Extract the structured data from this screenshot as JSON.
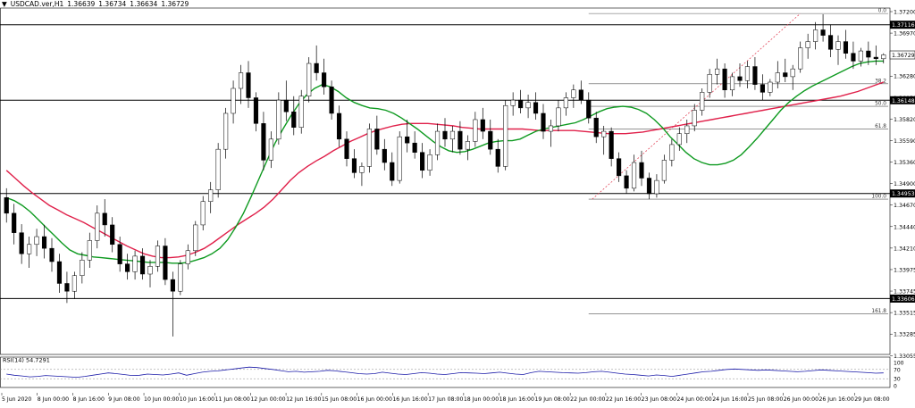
{
  "header": {
    "symbol": "USDCAD.ver,H1",
    "open": "1.36639",
    "high": "1.36734",
    "low": "1.36634",
    "close": "1.36729"
  },
  "rsi_header": "RSI(14) 54.7291",
  "chart_data": {
    "type": "candlestick",
    "symbol": "USDCAD.ver",
    "timeframe": "H1",
    "ylim": [
      1.3289,
      1.3733
    ],
    "price_ticks": [
      "1.37200",
      "1.36970",
      "1.36510",
      "1.36280",
      "1.36050",
      "1.35820",
      "1.35590",
      "1.35360",
      "1.34900",
      "1.34670",
      "1.34440",
      "1.34210",
      "1.33975",
      "1.33745",
      "1.33515",
      "1.33285",
      "1.33055"
    ],
    "x_labels": [
      "5 Jun 2020",
      "8 Jun 00:00",
      "8 Jun 16:00",
      "9 Jun 08:00",
      "10 Jun 00:00",
      "10 Jun 16:00",
      "11 Jun 08:00",
      "12 Jun 00:00",
      "12 Jun 16:00",
      "15 Jun 08:00",
      "16 Jun 00:00",
      "16 Jun 16:00",
      "17 Jun 08:00",
      "18 Jun 00:00",
      "18 Jun 16:00",
      "19 Jun 08:00",
      "22 Jun 00:00",
      "22 Jun 16:00",
      "23 Jun 08:00",
      "24 Jun 00:00",
      "24 Jun 16:00",
      "25 Jun 08:00",
      "26 Jun 00:00",
      "26 Jun 16:00",
      "29 Jun 08:00"
    ],
    "price_levels": [
      {
        "value": 1.37116,
        "label": "1.37116"
      },
      {
        "value": 1.36148,
        "label": "1.36148"
      },
      {
        "value": 1.34953,
        "label": "1.34953"
      },
      {
        "value": 1.33606,
        "label": "1.33606"
      }
    ],
    "current_price": {
      "value": 1.36729,
      "label": "1.36729"
    },
    "fibonacci": {
      "from": 1.3488,
      "to": 1.3726,
      "levels": [
        {
          "ratio": "0.0",
          "value": 1.3726
        },
        {
          "ratio": "38.2",
          "value": 1.3636
        },
        {
          "ratio": "50.0",
          "value": 1.3607
        },
        {
          "ratio": "61.8",
          "value": 1.3578
        },
        {
          "ratio": "100.0",
          "value": 1.3488
        },
        {
          "ratio": "161.8",
          "value": 1.3341
        }
      ]
    },
    "ohlc": [
      [
        1.349,
        1.3502,
        1.3458,
        1.347
      ],
      [
        1.347,
        1.3482,
        1.343,
        1.3445
      ],
      [
        1.3445,
        1.3456,
        1.3405,
        1.3418
      ],
      [
        1.3418,
        1.344,
        1.34,
        1.343
      ],
      [
        1.343,
        1.345,
        1.3415,
        1.344
      ],
      [
        1.344,
        1.3455,
        1.3412,
        1.3425
      ],
      [
        1.3425,
        1.3438,
        1.3395,
        1.3408
      ],
      [
        1.3408,
        1.3418,
        1.3368,
        1.338
      ],
      [
        1.338,
        1.3395,
        1.3355,
        1.337
      ],
      [
        1.337,
        1.3395,
        1.336,
        1.339
      ],
      [
        1.339,
        1.342,
        1.338,
        1.341
      ],
      [
        1.341,
        1.3445,
        1.34,
        1.3435
      ],
      [
        1.3435,
        1.348,
        1.3425,
        1.347
      ],
      [
        1.347,
        1.3488,
        1.344,
        1.3455
      ],
      [
        1.3455,
        1.3465,
        1.342,
        1.343
      ],
      [
        1.343,
        1.344,
        1.3395,
        1.3405
      ],
      [
        1.3405,
        1.3418,
        1.3385,
        1.3395
      ],
      [
        1.3395,
        1.3422,
        1.3385,
        1.3415
      ],
      [
        1.3415,
        1.3425,
        1.3385,
        1.3392
      ],
      [
        1.3392,
        1.341,
        1.3375,
        1.3402
      ],
      [
        1.3402,
        1.3435,
        1.3395,
        1.3428
      ],
      [
        1.3428,
        1.3438,
        1.3378,
        1.3385
      ],
      [
        1.3385,
        1.3395,
        1.3312,
        1.337
      ],
      [
        1.337,
        1.341,
        1.3365,
        1.3405
      ],
      [
        1.3405,
        1.343,
        1.3398,
        1.3422
      ],
      [
        1.3422,
        1.346,
        1.3415,
        1.3455
      ],
      [
        1.3455,
        1.3492,
        1.3448,
        1.3485
      ],
      [
        1.3485,
        1.351,
        1.347,
        1.35
      ],
      [
        1.35,
        1.356,
        1.349,
        1.3552
      ],
      [
        1.3552,
        1.3605,
        1.354,
        1.3598
      ],
      [
        1.3598,
        1.364,
        1.3585,
        1.363
      ],
      [
        1.363,
        1.366,
        1.361,
        1.365
      ],
      [
        1.365,
        1.3665,
        1.3605,
        1.3618
      ],
      [
        1.3618,
        1.3625,
        1.3575,
        1.3585
      ],
      [
        1.3585,
        1.36,
        1.3525,
        1.3538
      ],
      [
        1.3538,
        1.3575,
        1.3528,
        1.3565
      ],
      [
        1.3565,
        1.3625,
        1.3558,
        1.3615
      ],
      [
        1.3615,
        1.364,
        1.3588,
        1.36
      ],
      [
        1.36,
        1.362,
        1.357,
        1.358
      ],
      [
        1.358,
        1.3628,
        1.3572,
        1.362
      ],
      [
        1.362,
        1.367,
        1.3612,
        1.3662
      ],
      [
        1.3662,
        1.3685,
        1.364,
        1.365
      ],
      [
        1.365,
        1.3668,
        1.3622,
        1.3632
      ],
      [
        1.3632,
        1.364,
        1.359,
        1.3598
      ],
      [
        1.3598,
        1.3608,
        1.3555,
        1.3565
      ],
      [
        1.3565,
        1.3575,
        1.353,
        1.354
      ],
      [
        1.354,
        1.3552,
        1.3515,
        1.3522
      ],
      [
        1.3522,
        1.3535,
        1.3505,
        1.353
      ],
      [
        1.353,
        1.3585,
        1.3522,
        1.3578
      ],
      [
        1.3578,
        1.3595,
        1.3545,
        1.3552
      ],
      [
        1.3552,
        1.3565,
        1.3525,
        1.3535
      ],
      [
        1.3535,
        1.3548,
        1.3505,
        1.3512
      ],
      [
        1.3512,
        1.3575,
        1.3508,
        1.3568
      ],
      [
        1.3568,
        1.359,
        1.3548,
        1.356
      ],
      [
        1.356,
        1.3575,
        1.354,
        1.3548
      ],
      [
        1.3548,
        1.356,
        1.3515,
        1.3525
      ],
      [
        1.3525,
        1.3552,
        1.3518,
        1.3545
      ],
      [
        1.3545,
        1.3585,
        1.3538,
        1.3575
      ],
      [
        1.3575,
        1.3592,
        1.3555,
        1.3565
      ],
      [
        1.3565,
        1.3582,
        1.3548,
        1.3575
      ],
      [
        1.3575,
        1.3588,
        1.3545,
        1.3552
      ],
      [
        1.3552,
        1.357,
        1.3538,
        1.3562
      ],
      [
        1.3562,
        1.36,
        1.3555,
        1.359
      ],
      [
        1.359,
        1.3605,
        1.3565,
        1.3575
      ],
      [
        1.3575,
        1.359,
        1.3545,
        1.3552
      ],
      [
        1.3552,
        1.3565,
        1.3522,
        1.353
      ],
      [
        1.353,
        1.3615,
        1.3525,
        1.3608
      ],
      [
        1.3608,
        1.3625,
        1.3595,
        1.3615
      ],
      [
        1.3615,
        1.3628,
        1.3598,
        1.3605
      ],
      [
        1.3605,
        1.3622,
        1.3592,
        1.3612
      ],
      [
        1.3612,
        1.3625,
        1.359,
        1.3598
      ],
      [
        1.3598,
        1.361,
        1.3565,
        1.3575
      ],
      [
        1.3575,
        1.359,
        1.3555,
        1.3582
      ],
      [
        1.3582,
        1.3615,
        1.3575,
        1.3605
      ],
      [
        1.3605,
        1.3625,
        1.3595,
        1.3618
      ],
      [
        1.3618,
        1.3635,
        1.3605,
        1.3628
      ],
      [
        1.3628,
        1.364,
        1.361,
        1.3615
      ],
      [
        1.3615,
        1.3625,
        1.3585,
        1.3592
      ],
      [
        1.3592,
        1.36,
        1.356,
        1.3568
      ],
      [
        1.3568,
        1.3582,
        1.3545,
        1.3575
      ],
      [
        1.3575,
        1.358,
        1.353,
        1.354
      ],
      [
        1.354,
        1.3548,
        1.351,
        1.3518
      ],
      [
        1.3518,
        1.3525,
        1.3495,
        1.3502
      ],
      [
        1.3502,
        1.3545,
        1.3498,
        1.3535
      ],
      [
        1.3535,
        1.355,
        1.3505,
        1.3515
      ],
      [
        1.3515,
        1.3522,
        1.3488,
        1.3495
      ],
      [
        1.3495,
        1.352,
        1.349,
        1.3512
      ],
      [
        1.3512,
        1.3545,
        1.3508,
        1.3538
      ],
      [
        1.3538,
        1.3565,
        1.353,
        1.3558
      ],
      [
        1.3558,
        1.358,
        1.355,
        1.3572
      ],
      [
        1.3572,
        1.359,
        1.356,
        1.3582
      ],
      [
        1.3582,
        1.361,
        1.3575,
        1.3602
      ],
      [
        1.3602,
        1.363,
        1.3595,
        1.3625
      ],
      [
        1.3625,
        1.3655,
        1.3618,
        1.3648
      ],
      [
        1.3648,
        1.3668,
        1.3635,
        1.3655
      ],
      [
        1.3655,
        1.3662,
        1.3618,
        1.3628
      ],
      [
        1.3628,
        1.365,
        1.362,
        1.3645
      ],
      [
        1.3645,
        1.3662,
        1.3632,
        1.364
      ],
      [
        1.364,
        1.3665,
        1.363,
        1.3658
      ],
      [
        1.3658,
        1.367,
        1.3628,
        1.3635
      ],
      [
        1.3635,
        1.3648,
        1.3615,
        1.3625
      ],
      [
        1.3625,
        1.3642,
        1.362,
        1.3638
      ],
      [
        1.3638,
        1.3665,
        1.363,
        1.365
      ],
      [
        1.365,
        1.3668,
        1.3638,
        1.3645
      ],
      [
        1.3645,
        1.366,
        1.3628,
        1.3655
      ],
      [
        1.3655,
        1.369,
        1.365,
        1.3682
      ],
      [
        1.3682,
        1.37,
        1.3668,
        1.369
      ],
      [
        1.369,
        1.3715,
        1.368,
        1.3705
      ],
      [
        1.3705,
        1.3725,
        1.369,
        1.3698
      ],
      [
        1.3698,
        1.3712,
        1.367,
        1.368
      ],
      [
        1.368,
        1.3698,
        1.366,
        1.369
      ],
      [
        1.369,
        1.3705,
        1.3668,
        1.3675
      ],
      [
        1.3675,
        1.369,
        1.3655,
        1.3665
      ],
      [
        1.3665,
        1.3682,
        1.3658,
        1.3678
      ],
      [
        1.3678,
        1.369,
        1.366,
        1.367
      ],
      [
        1.367,
        1.3685,
        1.366,
        1.3668
      ],
      [
        1.3668,
        1.3675,
        1.3662,
        1.3673
      ]
    ],
    "ma_green": [
      1.349,
      1.3486,
      1.348,
      1.3472,
      1.3462,
      1.3452,
      1.3442,
      1.3432,
      1.3423,
      1.3418,
      1.3416,
      1.3414,
      1.3413,
      1.3412,
      1.3411,
      1.341,
      1.3409,
      1.3408,
      1.3407,
      1.3407,
      1.3407,
      1.3406,
      1.3406,
      1.3407,
      1.341,
      1.3413,
      1.3418,
      1.3425,
      1.3436,
      1.3452,
      1.347,
      1.3492,
      1.3515,
      1.3538,
      1.356,
      1.3578,
      1.3595,
      1.361,
      1.3622,
      1.363,
      1.3635,
      1.3632,
      1.3626,
      1.3618,
      1.3612,
      1.3608,
      1.3605,
      1.3604,
      1.3602,
      1.3598,
      1.3592,
      1.3585,
      1.3578,
      1.357,
      1.3562,
      1.3555,
      1.355,
      1.3548,
      1.3549,
      1.3552,
      1.3556,
      1.356,
      1.3562,
      1.3563,
      1.3563,
      1.3565,
      1.357,
      1.3575,
      1.3578,
      1.358,
      1.3582,
      1.3584,
      1.3586,
      1.359,
      1.3595,
      1.36,
      1.3604,
      1.3606,
      1.3607,
      1.3606,
      1.3603,
      1.3598,
      1.359,
      1.358,
      1.3568,
      1.3558,
      1.3548,
      1.354,
      1.3535,
      1.3532,
      1.3532,
      1.3534,
      1.3538,
      1.3545,
      1.3555,
      1.3566,
      1.3578,
      1.359,
      1.3602,
      1.3612,
      1.362,
      1.3627,
      1.3633,
      1.3638,
      1.3643,
      1.3648,
      1.3653,
      1.3658,
      1.3662,
      1.3664,
      1.3665,
      1.3665
    ],
    "ma_red": [
      1.3525,
      1.3515,
      1.3505,
      1.3496,
      1.3488,
      1.348,
      1.3474,
      1.3468,
      1.3463,
      1.3458,
      1.3452,
      1.3446,
      1.344,
      1.3434,
      1.3428,
      1.3423,
      1.3418,
      1.3415,
      1.3413,
      1.3413,
      1.3414,
      1.3416,
      1.342,
      1.3425,
      1.3432,
      1.344,
      1.3448,
      1.3456,
      1.3463,
      1.347,
      1.3478,
      1.3488,
      1.35,
      1.3512,
      1.3522,
      1.353,
      1.3537,
      1.3543,
      1.355,
      1.3556,
      1.3562,
      1.3567,
      1.3572,
      1.3576,
      1.3579,
      1.3582,
      1.3584,
      1.3585,
      1.3585,
      1.3585,
      1.3584,
      1.3583,
      1.3582,
      1.358,
      1.3579,
      1.3578,
      1.3578,
      1.3578,
      1.3578,
      1.3578,
      1.3578,
      1.3577,
      1.3576,
      1.3576,
      1.3576,
      1.3576,
      1.3576,
      1.3575,
      1.3574,
      1.3573,
      1.3572,
      1.3572,
      1.3572,
      1.3573,
      1.3574,
      1.3576,
      1.3578,
      1.358,
      1.3582,
      1.3584,
      1.3586,
      1.3588,
      1.359,
      1.3592,
      1.3594,
      1.3596,
      1.3598,
      1.36,
      1.3602,
      1.3604,
      1.3606,
      1.3608,
      1.361,
      1.3612,
      1.3614,
      1.3616,
      1.3618,
      1.362,
      1.3623,
      1.3626,
      1.363,
      1.3634,
      1.3638
    ],
    "rsi": {
      "label": "RSI(14) 54.7291",
      "ylim": [
        0,
        100
      ],
      "ticks": [
        100,
        70,
        30,
        0
      ],
      "values": [
        50,
        45,
        42,
        38,
        40,
        44,
        42,
        40,
        38,
        36,
        40,
        45,
        50,
        55,
        52,
        48,
        44,
        45,
        50,
        48,
        46,
        50,
        55,
        45,
        52,
        58,
        62,
        64,
        68,
        72,
        76,
        80,
        78,
        74,
        70,
        65,
        60,
        62,
        58,
        60,
        62,
        66,
        64,
        60,
        56,
        52,
        50,
        52,
        58,
        54,
        50,
        48,
        52,
        56,
        54,
        50,
        48,
        52,
        56,
        55,
        54,
        52,
        55,
        58,
        54,
        50,
        48,
        56,
        62,
        60,
        58,
        56,
        55,
        54,
        56,
        60,
        62,
        58,
        54,
        50,
        48,
        45,
        42,
        46,
        44,
        40,
        45,
        50,
        55,
        60,
        62,
        66,
        70,
        72,
        70,
        68,
        66,
        68,
        66,
        64,
        62,
        60,
        62,
        65,
        68,
        66,
        64,
        62,
        60,
        58,
        56,
        54,
        55
      ]
    }
  }
}
